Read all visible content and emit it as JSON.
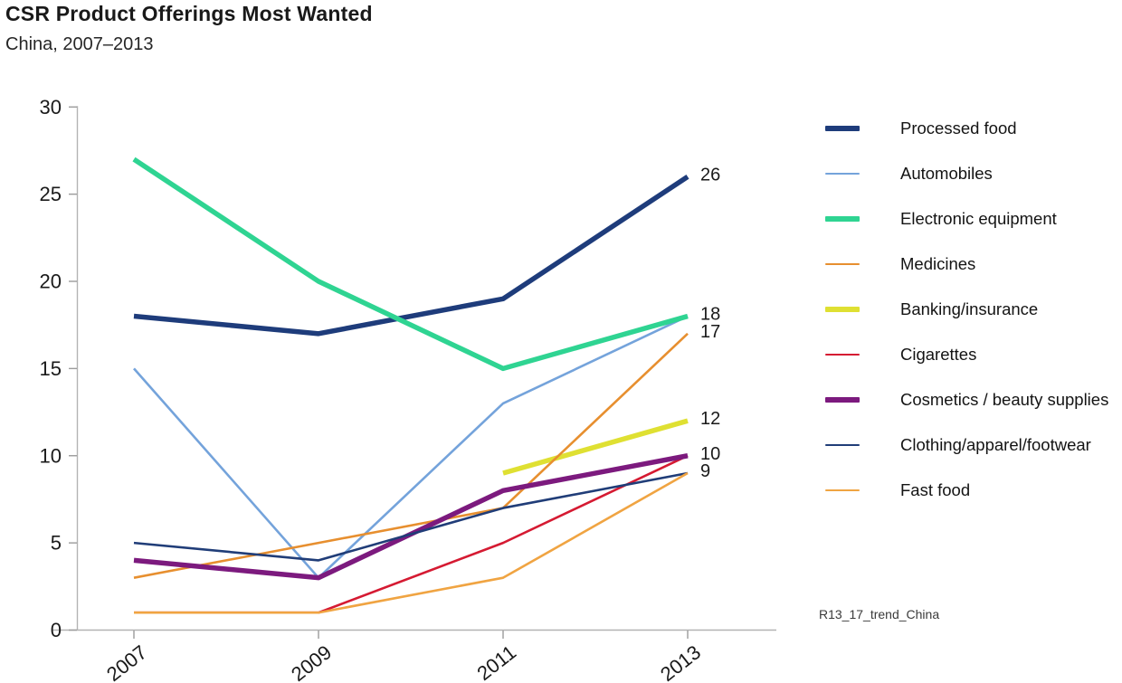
{
  "header": {
    "title": "CSR Product Offerings Most Wanted",
    "subtitle": "China, 2007–2013"
  },
  "footnote": "R13_17_trend_China",
  "chart_data": {
    "type": "line",
    "x": [
      2007,
      2009,
      2011,
      2013
    ],
    "x_tick_labels": [
      "2007",
      "2009",
      "2011",
      "2013"
    ],
    "y_ticks": [
      0,
      5,
      10,
      15,
      20,
      25,
      30
    ],
    "ylim": [
      0,
      30
    ],
    "grid": false,
    "legend_position": "right",
    "axis_color": "#b3b3b3",
    "tick_color": "#9b9b9b",
    "series": [
      {
        "name": "Processed food",
        "values": [
          18,
          17,
          19,
          26
        ],
        "color": "#1e3c7b",
        "thick": true,
        "end_label": "26"
      },
      {
        "name": "Automobiles",
        "values": [
          15,
          3,
          13,
          18
        ],
        "color": "#74a3db",
        "thick": false,
        "end_label": null
      },
      {
        "name": "Electronic equipment",
        "values": [
          27,
          20,
          15,
          18
        ],
        "color": "#2fd492",
        "thick": true,
        "end_label": "18"
      },
      {
        "name": "Medicines",
        "values": [
          3,
          5,
          7,
          17
        ],
        "color": "#e78f2f",
        "thick": false,
        "end_label": "17"
      },
      {
        "name": "Banking/insurance",
        "values": [
          null,
          null,
          9,
          12
        ],
        "color": "#dfe032",
        "thick": true,
        "end_label": "12"
      },
      {
        "name": "Cigarettes",
        "values": [
          1,
          1,
          5,
          10
        ],
        "color": "#d51a32",
        "thick": false,
        "end_label": null
      },
      {
        "name": "Cosmetics / beauty supplies",
        "values": [
          4,
          3,
          8,
          10
        ],
        "color": "#7c1a7e",
        "thick": true,
        "end_label": "10"
      },
      {
        "name": "Clothing/apparel/footwear",
        "values": [
          5,
          4,
          7,
          9
        ],
        "color": "#203d78",
        "thick": false,
        "end_label": "9"
      },
      {
        "name": "Fast food",
        "values": [
          1,
          1,
          3,
          9
        ],
        "color": "#f0a442",
        "thick": false,
        "end_label": null
      }
    ]
  }
}
